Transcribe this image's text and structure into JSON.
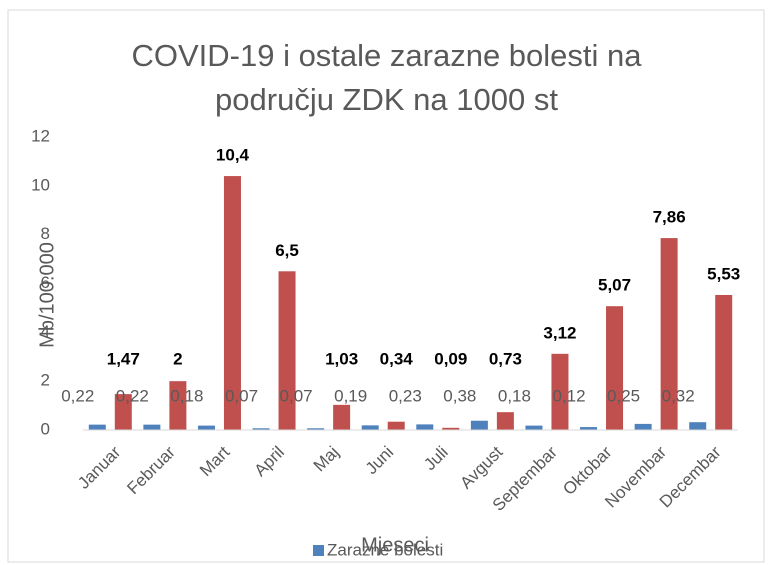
{
  "chart_data": {
    "type": "bar",
    "title": "COVID-19 i ostale zarazne bolesti na području ZDK na 1000 st",
    "xlabel": "Mjeseci",
    "ylabel": "Mb/100.000",
    "categories": [
      "Januar",
      "Februar",
      "Mart",
      "April",
      "Maj",
      "Juni",
      "Juli",
      "Avgust",
      "Septembar",
      "Oktobar",
      "Novembar",
      "Decembar"
    ],
    "series": [
      {
        "name": "Zarazne bolesti",
        "color": "#4f81bd",
        "values": [
          0.22,
          0.22,
          0.18,
          0.07,
          0.07,
          0.19,
          0.23,
          0.38,
          0.18,
          0.12,
          0.25,
          0.32
        ],
        "value_labels": [
          "0,22",
          "0,22",
          "0,18",
          "0,07",
          "0,07",
          "0,19",
          "0,23",
          "0,38",
          "0,18",
          "0,12",
          "0,25",
          "0,32"
        ]
      },
      {
        "color": "#c0504d",
        "values": [
          1.47,
          2,
          10.4,
          6.5,
          1.03,
          0.34,
          0.09,
          0.73,
          3.12,
          5.07,
          7.86,
          5.53
        ],
        "value_labels": [
          "1,47",
          "2",
          "10,4",
          "6,5",
          "1,03",
          "0,34",
          "0,09",
          "0,73",
          "3,12",
          "5,07",
          "7,86",
          "5,53"
        ]
      }
    ],
    "ylim": [
      0,
      12
    ],
    "yticks": [
      0,
      2,
      4,
      6,
      8,
      10,
      12
    ],
    "grid": false,
    "legend": "bottom"
  }
}
